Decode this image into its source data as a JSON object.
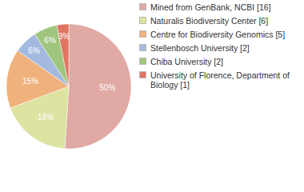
{
  "chart_data": {
    "type": "pie",
    "categories": [
      "Mined from GenBank, NCBI [16]",
      "Naturalis Biodiversity Center [6]",
      "Centre for Biodiversity Genomics [5]",
      "Stellenbosch University [2]",
      "Chiba University [2]",
      "University of Florence, Department of Biology [1]"
    ],
    "values": [
      50,
      18,
      15,
      6,
      6,
      3
    ],
    "value_labels": [
      "50%",
      "18%",
      "15%",
      "6%",
      "6%",
      "3%"
    ],
    "colors": [
      "#e0a9a3",
      "#dde3a1",
      "#f0b27c",
      "#a3b9df",
      "#9fc57e",
      "#e17462"
    ],
    "data_labels": true,
    "legend": "top-right"
  }
}
